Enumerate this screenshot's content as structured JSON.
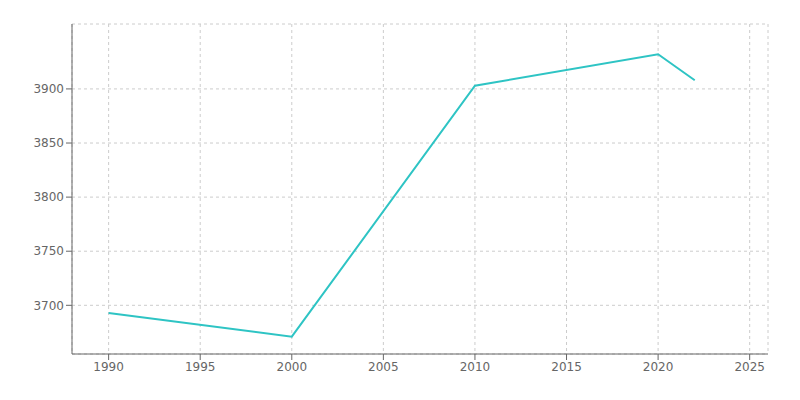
{
  "chart_data": {
    "type": "line",
    "x": [
      1990,
      2000,
      2010,
      2020,
      2021,
      2022
    ],
    "values": [
      3693,
      3671,
      3903,
      3932,
      3920,
      3908
    ],
    "color": "#2ec4c4",
    "xlim": [
      1988,
      2026
    ],
    "ylim": [
      3655,
      3960
    ],
    "xticks": [
      1990,
      1995,
      2000,
      2005,
      2010,
      2015,
      2020,
      2025
    ],
    "yticks": [
      3700,
      3750,
      3800,
      3850,
      3900
    ],
    "grid": true
  }
}
